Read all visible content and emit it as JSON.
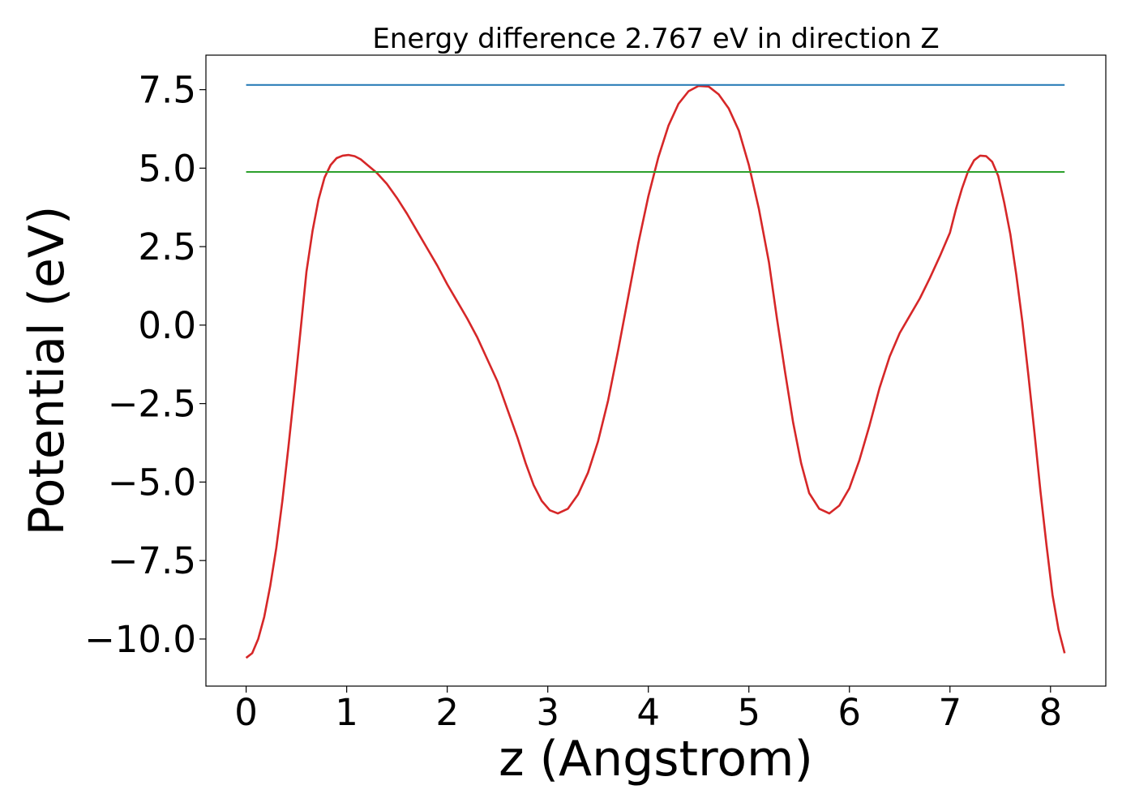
{
  "chart_data": {
    "type": "line",
    "title": "Energy difference 2.767 eV in direction Z",
    "xlabel": "z (Angstrom)",
    "ylabel": "Potential (eV)",
    "xlim": [
      -0.4,
      8.55
    ],
    "ylim": [
      -11.5,
      8.6
    ],
    "x_ticks": [
      0,
      1,
      2,
      3,
      4,
      5,
      6,
      7,
      8
    ],
    "x_tick_labels": [
      "0",
      "1",
      "2",
      "3",
      "4",
      "5",
      "6",
      "7",
      "8"
    ],
    "y_ticks": [
      -10,
      -7.5,
      -5,
      -2.5,
      0,
      2.5,
      5,
      7.5
    ],
    "y_tick_labels": [
      "−10.0",
      "−7.5",
      "−5.0",
      "−2.5",
      "0.0",
      "2.5",
      "5.0",
      "7.5"
    ],
    "grid": false,
    "legend": false,
    "series": [
      {
        "color": "#d62728",
        "x": [
          0.0,
          0.06,
          0.12,
          0.18,
          0.24,
          0.3,
          0.36,
          0.42,
          0.48,
          0.54,
          0.6,
          0.66,
          0.72,
          0.78,
          0.84,
          0.9,
          0.96,
          1.02,
          1.08,
          1.14,
          1.2,
          1.3,
          1.4,
          1.5,
          1.6,
          1.7,
          1.8,
          1.9,
          2.0,
          2.1,
          2.2,
          2.3,
          2.4,
          2.5,
          2.6,
          2.7,
          2.78,
          2.86,
          2.94,
          3.02,
          3.1,
          3.2,
          3.3,
          3.4,
          3.5,
          3.6,
          3.7,
          3.8,
          3.9,
          4.0,
          4.1,
          4.2,
          4.3,
          4.4,
          4.5,
          4.6,
          4.7,
          4.8,
          4.9,
          5.0,
          5.1,
          5.2,
          5.28,
          5.36,
          5.44,
          5.52,
          5.6,
          5.7,
          5.8,
          5.9,
          6.0,
          6.1,
          6.2,
          6.3,
          6.4,
          6.5,
          6.6,
          6.7,
          6.8,
          6.9,
          7.0,
          7.06,
          7.12,
          7.18,
          7.24,
          7.3,
          7.36,
          7.42,
          7.48,
          7.54,
          7.6,
          7.66,
          7.72,
          7.78,
          7.84,
          7.9,
          7.96,
          8.02,
          8.08,
          8.14
        ],
        "y": [
          -10.6,
          -10.45,
          -10.0,
          -9.3,
          -8.3,
          -7.1,
          -5.6,
          -3.9,
          -2.1,
          -0.2,
          1.7,
          3.0,
          4.0,
          4.7,
          5.1,
          5.32,
          5.4,
          5.42,
          5.38,
          5.28,
          5.12,
          4.85,
          4.5,
          4.05,
          3.55,
          3.0,
          2.45,
          1.9,
          1.3,
          0.75,
          0.2,
          -0.4,
          -1.1,
          -1.8,
          -2.7,
          -3.6,
          -4.4,
          -5.1,
          -5.6,
          -5.9,
          -6.0,
          -5.85,
          -5.4,
          -4.7,
          -3.7,
          -2.4,
          -0.8,
          0.9,
          2.6,
          4.1,
          5.35,
          6.35,
          7.05,
          7.45,
          7.62,
          7.6,
          7.35,
          6.9,
          6.2,
          5.1,
          3.7,
          2.0,
          0.2,
          -1.5,
          -3.1,
          -4.4,
          -5.35,
          -5.85,
          -6.0,
          -5.75,
          -5.2,
          -4.3,
          -3.2,
          -2.0,
          -1.0,
          -0.25,
          0.3,
          0.85,
          1.5,
          2.2,
          2.95,
          3.7,
          4.35,
          4.9,
          5.25,
          5.4,
          5.38,
          5.2,
          4.75,
          3.9,
          2.9,
          1.6,
          0.1,
          -1.6,
          -3.4,
          -5.3,
          -7.0,
          -8.6,
          -9.7,
          -10.45
        ]
      },
      {
        "color": "#1f77b4",
        "x": [
          0.0,
          8.14
        ],
        "y": [
          7.65,
          7.65
        ]
      },
      {
        "color": "#2ca02c",
        "x": [
          0.0,
          8.14
        ],
        "y": [
          4.88,
          4.88
        ]
      }
    ]
  }
}
